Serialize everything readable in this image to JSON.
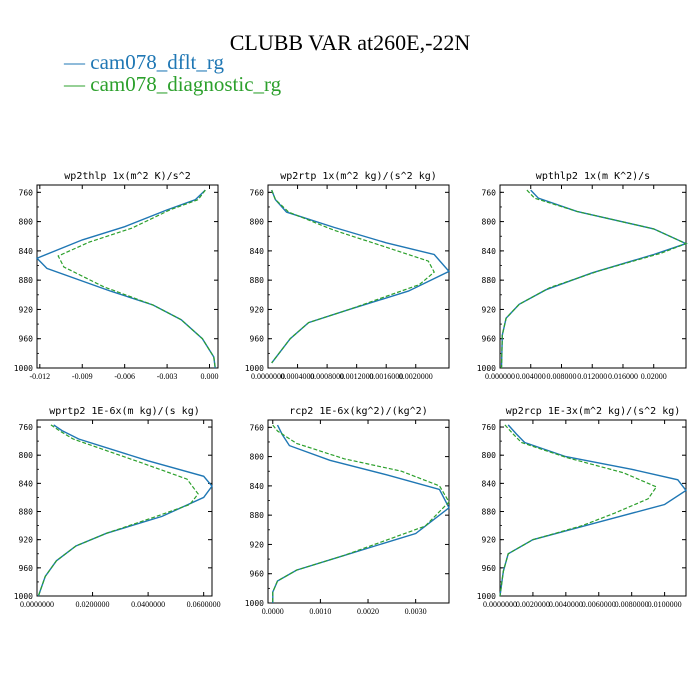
{
  "figure": {
    "title": "CLUBB VAR at260E,-22N",
    "legend": [
      {
        "label": "— cam078_dflt_rg",
        "color": "#1f77b4"
      },
      {
        "label": "— cam078_diagnostic_rg",
        "color": "#2ca02c"
      }
    ]
  },
  "chart_data": [
    {
      "type": "line",
      "title": "wp2thlp   1x(m^2 K)/s^2",
      "ylim": [
        1000,
        750
      ],
      "yinvert": true,
      "yticks": [
        "760",
        "800",
        "840",
        "880",
        "920",
        "960",
        "1000"
      ],
      "xlim": [
        -0.0122,
        0.0006
      ],
      "xticks": [
        "-0.012",
        "-0.009",
        "-0.006",
        "-0.003",
        "0.000"
      ],
      "xtick_values": [
        -0.012,
        -0.009,
        -0.006,
        -0.003,
        0.0
      ],
      "series": [
        {
          "name": "cam078_dflt_rg",
          "color": "#1f77b4",
          "dash": false,
          "points": [
            [
              -0.0003,
              757
            ],
            [
              -0.001,
              770
            ],
            [
              -0.003,
              784
            ],
            [
              -0.006,
              807
            ],
            [
              -0.009,
              825
            ],
            [
              -0.0122,
              850
            ],
            [
              -0.0115,
              864
            ],
            [
              -0.007,
              895
            ],
            [
              -0.004,
              914
            ],
            [
              -0.002,
              934
            ],
            [
              -0.0005,
              960
            ],
            [
              0.0003,
              985
            ],
            [
              0.0004,
              1000
            ]
          ]
        },
        {
          "name": "cam078_diagnostic_rg",
          "color": "#2ca02c",
          "dash": true,
          "points": [
            [
              -0.0003,
              757
            ],
            [
              -0.0008,
              770
            ],
            [
              -0.0028,
              784
            ],
            [
              -0.0055,
              809
            ],
            [
              -0.0085,
              828
            ],
            [
              -0.0107,
              847
            ],
            [
              -0.0103,
              862
            ],
            [
              -0.0075,
              889
            ],
            [
              -0.004,
              914
            ],
            [
              -0.002,
              934
            ],
            [
              -0.0005,
              960
            ],
            [
              0.0003,
              985
            ],
            [
              0.0004,
              1000
            ]
          ]
        }
      ]
    },
    {
      "type": "line",
      "title": "wp2rtp   1x(m^2 kg)/(s^2 kg)",
      "ylim": [
        1000,
        750
      ],
      "yinvert": true,
      "yticks": [
        "760",
        "800",
        "840",
        "880",
        "920",
        "960",
        "1000"
      ],
      "xlim": [
        0.0,
        0.00245
      ],
      "xticks": [
        "0.0000000",
        "0.0004000",
        "0.0008000",
        "0.0012000",
        "0.0016000",
        "0.0020000"
      ],
      "xtick_values": [
        0.0,
        0.0004,
        0.0008,
        0.0012,
        0.0016,
        0.002
      ],
      "series": [
        {
          "name": "cam078_dflt_rg",
          "color": "#1f77b4",
          "dash": false,
          "points": [
            [
              5e-05,
              757
            ],
            [
              0.0001,
              770
            ],
            [
              0.00025,
              787
            ],
            [
              0.0009,
              808
            ],
            [
              0.0016,
              829
            ],
            [
              0.00225,
              845
            ],
            [
              0.00245,
              868
            ],
            [
              0.0019,
              895
            ],
            [
              0.0011,
              920
            ],
            [
              0.00055,
              938
            ],
            [
              0.0003,
              960
            ],
            [
              5e-05,
              993
            ]
          ]
        },
        {
          "name": "cam078_diagnostic_rg",
          "color": "#2ca02c",
          "dash": true,
          "points": [
            [
              5e-05,
              757
            ],
            [
              0.0001,
              770
            ],
            [
              0.00028,
              787
            ],
            [
              0.0009,
              812
            ],
            [
              0.0016,
              835
            ],
            [
              0.00217,
              854
            ],
            [
              0.00225,
              869
            ],
            [
              0.00205,
              886
            ],
            [
              0.0011,
              920
            ],
            [
              0.00055,
              938
            ],
            [
              0.0003,
              960
            ],
            [
              5e-05,
              993
            ]
          ]
        }
      ]
    },
    {
      "type": "line",
      "title": "wpthlp2   1x(m K^2)/s",
      "ylim": [
        1000,
        750
      ],
      "yinvert": true,
      "yticks": [
        "760",
        "800",
        "840",
        "880",
        "920",
        "960",
        "1000"
      ],
      "xlim": [
        0.0,
        0.0242
      ],
      "xticks": [
        "0.000000",
        "0.004000",
        "0.008000",
        "0.012000",
        "0.016000",
        "0.02000"
      ],
      "xtick_values": [
        0.0,
        0.004,
        0.008,
        0.012,
        0.016,
        0.02
      ],
      "series": [
        {
          "name": "cam078_dflt_rg",
          "color": "#1f77b4",
          "dash": false,
          "points": [
            [
              0.004,
              757
            ],
            [
              0.005,
              768
            ],
            [
              0.01,
              786
            ],
            [
              0.02,
              810
            ],
            [
              0.0242,
              830
            ],
            [
              0.02,
              845
            ],
            [
              0.012,
              870
            ],
            [
              0.006,
              893
            ],
            [
              0.0025,
              913
            ],
            [
              0.0008,
              932
            ],
            [
              0.0003,
              955
            ],
            [
              0.0002,
              1000
            ]
          ]
        },
        {
          "name": "cam078_diagnostic_rg",
          "color": "#2ca02c",
          "dash": true,
          "points": [
            [
              0.0035,
              757
            ],
            [
              0.0045,
              768
            ],
            [
              0.01,
              786
            ],
            [
              0.02,
              810
            ],
            [
              0.0242,
              830
            ],
            [
              0.021,
              843
            ],
            [
              0.013,
              867
            ],
            [
              0.0065,
              890
            ],
            [
              0.0025,
              913
            ],
            [
              0.0008,
              932
            ],
            [
              0.0003,
              955
            ],
            [
              0.0002,
              1000
            ]
          ]
        }
      ]
    },
    {
      "type": "line",
      "title": "wprtp2   1E-6x(m kg)/(s kg)",
      "ylim": [
        1000,
        750
      ],
      "yinvert": true,
      "yticks": [
        "760",
        "800",
        "840",
        "880",
        "920",
        "960",
        "1000"
      ],
      "xlim": [
        0.0,
        0.063
      ],
      "xticks": [
        "0.0000000",
        "0.0200000",
        "0.0400000",
        "0.0600000"
      ],
      "xtick_values": [
        0.0,
        0.02,
        0.04,
        0.06
      ],
      "series": [
        {
          "name": "cam078_dflt_rg",
          "color": "#1f77b4",
          "dash": false,
          "points": [
            [
              0.006,
              757
            ],
            [
              0.009,
              765
            ],
            [
              0.015,
              777
            ],
            [
              0.04,
              808
            ],
            [
              0.06,
              830
            ],
            [
              0.063,
              844
            ],
            [
              0.06,
              860
            ],
            [
              0.045,
              887
            ],
            [
              0.025,
              911
            ],
            [
              0.014,
              929
            ],
            [
              0.007,
              950
            ],
            [
              0.003,
              972
            ],
            [
              0.0005,
              1000
            ]
          ]
        },
        {
          "name": "cam078_diagnostic_rg",
          "color": "#2ca02c",
          "dash": true,
          "points": [
            [
              0.005,
              757
            ],
            [
              0.008,
              765
            ],
            [
              0.013,
              777
            ],
            [
              0.037,
              810
            ],
            [
              0.054,
              834
            ],
            [
              0.058,
              855
            ],
            [
              0.055,
              870
            ],
            [
              0.043,
              887
            ],
            [
              0.025,
              911
            ],
            [
              0.014,
              929
            ],
            [
              0.007,
              950
            ],
            [
              0.003,
              972
            ],
            [
              0.0005,
              1000
            ]
          ]
        }
      ]
    },
    {
      "type": "line",
      "title": "rcp2   1E-6x(kg^2)/(kg^2)",
      "ylim": [
        1000,
        750
      ],
      "yinvert": true,
      "yticks": [
        "760",
        "800",
        "840",
        "880",
        "920",
        "960",
        "1000"
      ],
      "xlim": [
        -0.0001,
        0.0037
      ],
      "xticks": [
        "0.0000",
        "0.0010",
        "0.0020",
        "0.0030"
      ],
      "xtick_values": [
        0.0,
        0.001,
        0.002,
        0.003
      ],
      "series": [
        {
          "name": "cam078_dflt_rg",
          "color": "#1f77b4",
          "dash": false,
          "points": [
            [
              0.0001,
              757
            ],
            [
              0.0002,
              770
            ],
            [
              0.00035,
              785
            ],
            [
              0.0012,
              805
            ],
            [
              0.0024,
              825
            ],
            [
              0.0035,
              845
            ],
            [
              0.0037,
              870
            ],
            [
              0.003,
              905
            ],
            [
              0.0015,
              935
            ],
            [
              0.0005,
              955
            ],
            [
              0.0001,
              970
            ],
            [
              0.0,
              985
            ],
            [
              0.0,
              1000
            ]
          ]
        },
        {
          "name": "cam078_diagnostic_rg",
          "color": "#2ca02c",
          "dash": true,
          "points": [
            [
              0.0,
              757
            ],
            [
              0.0001,
              765
            ],
            [
              0.0005,
              782
            ],
            [
              0.0015,
              803
            ],
            [
              0.0027,
              820
            ],
            [
              0.0035,
              840
            ],
            [
              0.0037,
              862
            ],
            [
              0.0032,
              895
            ],
            [
              0.0015,
              935
            ],
            [
              0.0005,
              955
            ],
            [
              0.0001,
              970
            ],
            [
              0.0,
              985
            ],
            [
              0.0,
              1000
            ]
          ]
        }
      ]
    },
    {
      "type": "line",
      "title": "wp2rcp   1E-3x(m^2 kg)/(s^2 kg)",
      "ylim": [
        1000,
        750
      ],
      "yinvert": true,
      "yticks": [
        "760",
        "800",
        "840",
        "880",
        "920",
        "960",
        "1000"
      ],
      "xlim": [
        0.0,
        0.0113
      ],
      "xticks": [
        "0.0000000",
        "0.0020000",
        "0.0040000",
        "0.0060000",
        "0.0080000",
        "0.0100000"
      ],
      "xtick_values": [
        0.0,
        0.002,
        0.004,
        0.006,
        0.008,
        0.01
      ],
      "series": [
        {
          "name": "cam078_dflt_rg",
          "color": "#1f77b4",
          "dash": false,
          "points": [
            [
              0.0005,
              757
            ],
            [
              0.001,
              770
            ],
            [
              0.0015,
              782
            ],
            [
              0.004,
              802
            ],
            [
              0.008,
              820
            ],
            [
              0.0108,
              835
            ],
            [
              0.0113,
              850
            ],
            [
              0.01,
              870
            ],
            [
              0.006,
              895
            ],
            [
              0.002,
              920
            ],
            [
              0.0005,
              940
            ],
            [
              0.0002,
              965
            ],
            [
              0.0,
              1000
            ]
          ]
        },
        {
          "name": "cam078_diagnostic_rg",
          "color": "#2ca02c",
          "dash": true,
          "points": [
            [
              0.0003,
              757
            ],
            [
              0.0008,
              770
            ],
            [
              0.0013,
              782
            ],
            [
              0.004,
              803
            ],
            [
              0.0075,
              825
            ],
            [
              0.0095,
              845
            ],
            [
              0.009,
              862
            ],
            [
              0.007,
              882
            ],
            [
              0.005,
              900
            ],
            [
              0.002,
              920
            ],
            [
              0.0005,
              940
            ],
            [
              0.0002,
              965
            ],
            [
              0.0,
              1000
            ]
          ]
        }
      ]
    }
  ]
}
